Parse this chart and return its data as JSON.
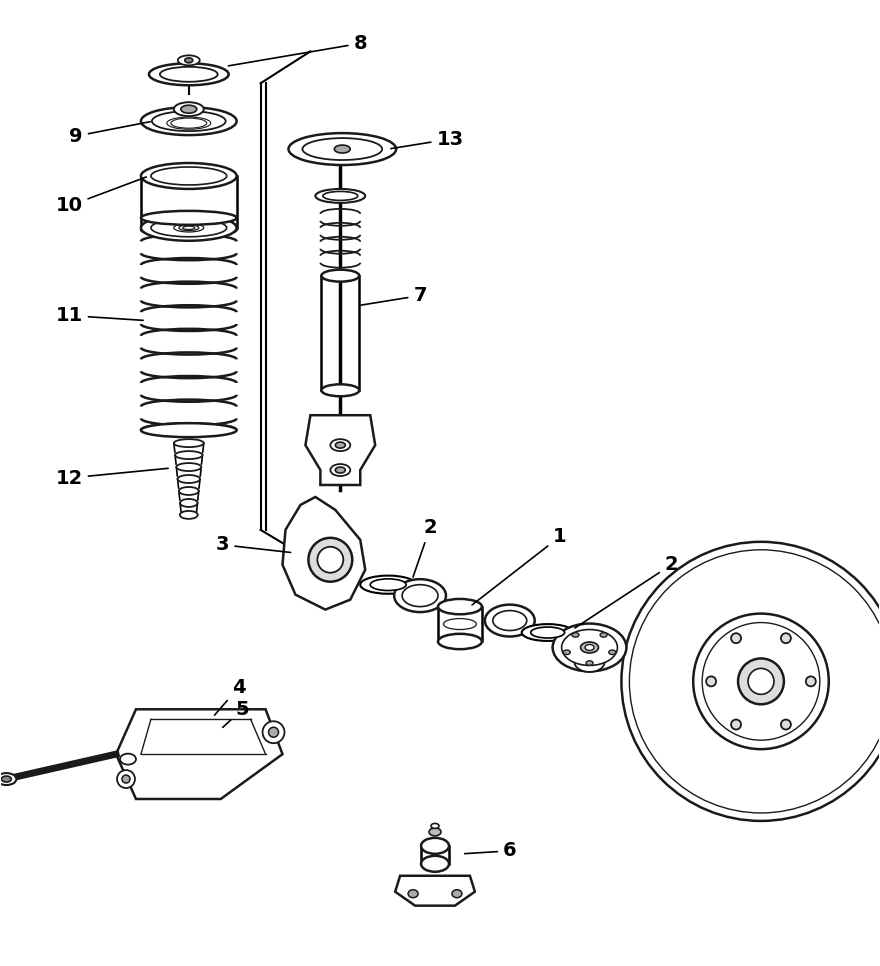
{
  "bg_color": "#ffffff",
  "line_color": "#1a1a1a",
  "figsize": [
    8.8,
    9.66
  ],
  "dpi": 100
}
